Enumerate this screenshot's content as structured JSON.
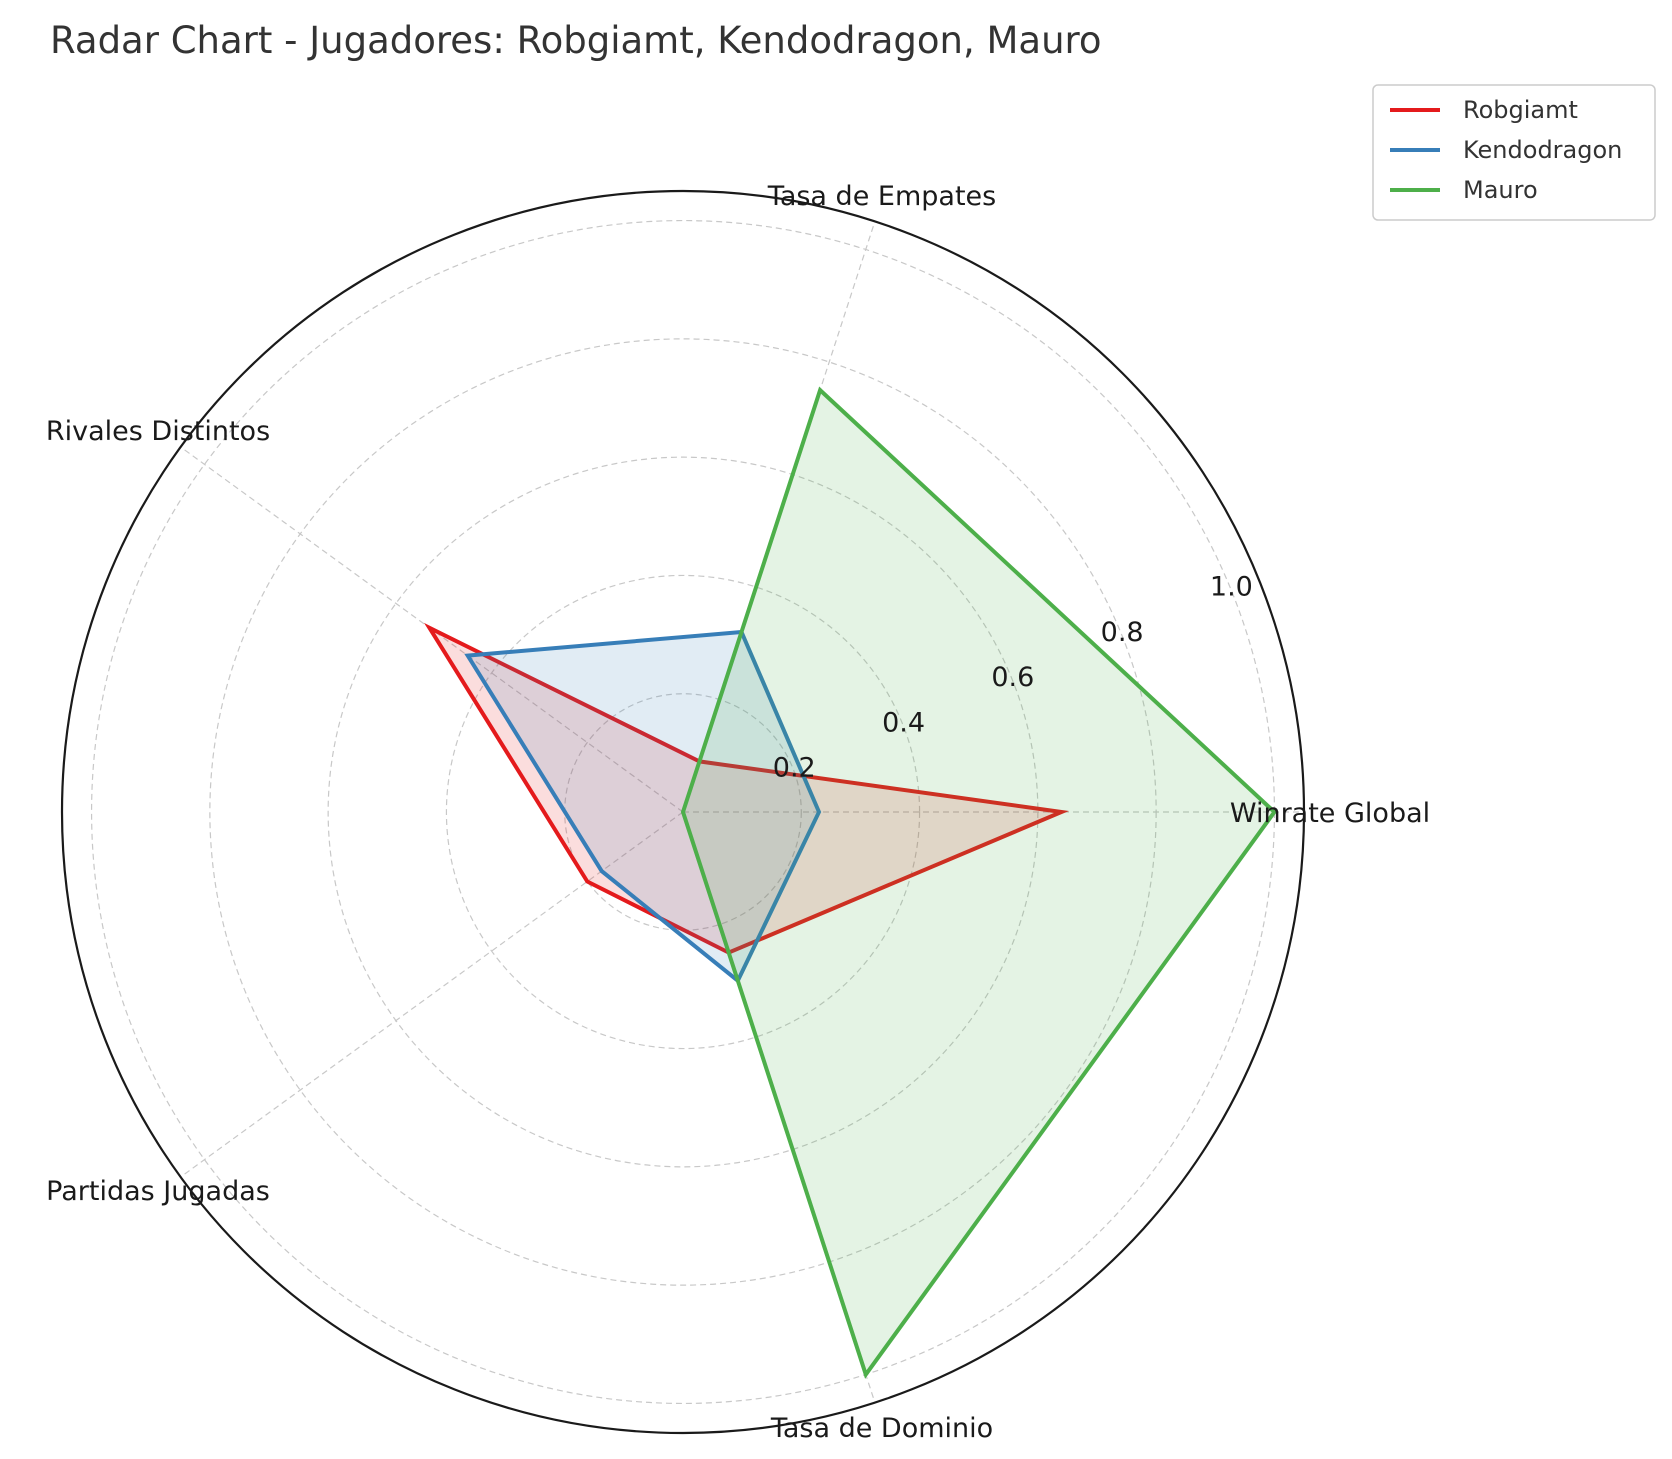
{
  "chart_data": {
    "type": "radar",
    "title": "Radar Chart - Jugadores: Robgiamt, Kendodragon, Mauro",
    "axes": [
      "Winrate Global",
      "Tasa de Empates",
      "Rivales Distintos",
      "Partidas Jugadas",
      "Tasa de Dominio"
    ],
    "rlim": [
      0,
      1.05
    ],
    "rticks": [
      0.2,
      0.4,
      0.6,
      0.8,
      1.0
    ],
    "rtick_labels": [
      "0.2",
      "0.4",
      "0.6",
      "0.8",
      "1.0"
    ],
    "legend_position": "top-right",
    "grid": true,
    "series": [
      {
        "name": "Robgiamt",
        "color": "#e41a1c",
        "values": [
          0.64,
          0.09,
          0.53,
          0.2,
          0.25
        ]
      },
      {
        "name": "Kendodragon",
        "color": "#377eb8",
        "values": [
          0.23,
          0.32,
          0.45,
          0.17,
          0.3
        ]
      },
      {
        "name": "Mauro",
        "color": "#4daf4a",
        "values": [
          1.0,
          0.75,
          0.0,
          0.0,
          1.0
        ]
      }
    ]
  }
}
